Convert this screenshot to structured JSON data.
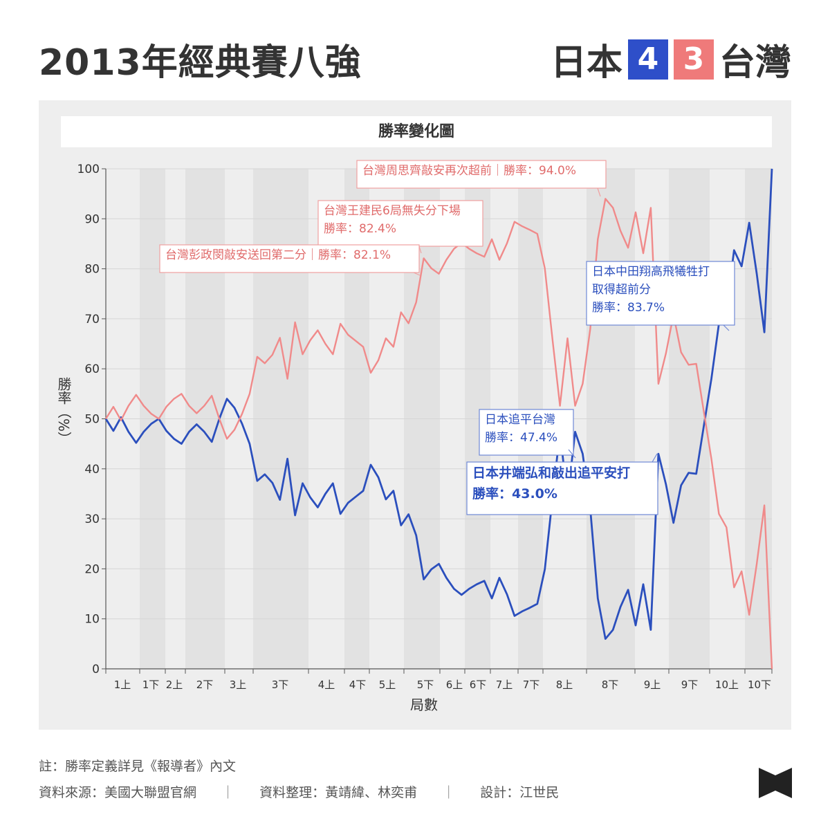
{
  "header": {
    "title": "2013年經典賽八強",
    "team_left": "日本",
    "score_left": "4",
    "score_right": "3",
    "team_right": "台灣"
  },
  "colors": {
    "japan": "#2b4fbd",
    "taiwan": "#f08a8a",
    "japan_box": "#2e4fc9",
    "taiwan_box": "#ef7a7a",
    "band": "#e2e2e2"
  },
  "chart_data": {
    "type": "line",
    "title": "勝率變化圖",
    "xlabel": "局數",
    "ylabel": "勝率（%）",
    "ylim": [
      0,
      100
    ],
    "yticks": [
      0,
      10,
      20,
      30,
      40,
      50,
      60,
      70,
      80,
      90,
      100
    ],
    "x_tick_labels": [
      "1上",
      "1下",
      "2上",
      "2下",
      "3上",
      "3下",
      "4上",
      "4下",
      "5上",
      "5下",
      "6上",
      "6下",
      "7上",
      "7下",
      "8上",
      "8下",
      "9上",
      "9下",
      "10上",
      "10下"
    ],
    "series": [
      {
        "name": "日本",
        "color": "#2b4fbd",
        "values": [
          50.0,
          47.6,
          50.3,
          47.4,
          45.2,
          47.4,
          49.0,
          50.0,
          47.6,
          46.0,
          45.0,
          47.4,
          48.9,
          47.4,
          45.4,
          50.0,
          54.0,
          52.2,
          49.0,
          45.0,
          37.6,
          38.9,
          37.2,
          33.8,
          42.0,
          30.7,
          37.1,
          34.3,
          32.3,
          35.0,
          37.1,
          31.0,
          33.2,
          34.4,
          35.6,
          40.8,
          38.3,
          33.9,
          35.6,
          28.7,
          30.9,
          26.7,
          17.9,
          19.9,
          21.0,
          18.2,
          16.0,
          14.8,
          16.0,
          16.9,
          17.6,
          14.1,
          18.2,
          14.9,
          10.6,
          11.5,
          12.2,
          13.0,
          19.9,
          33.9,
          47.4,
          33.9,
          47.4,
          43.0,
          32.0,
          14.1,
          6.0,
          7.8,
          12.4,
          15.8,
          8.7,
          16.9,
          7.8,
          43.0,
          36.9,
          29.2,
          36.7,
          39.2,
          39.0,
          48.5,
          58.0,
          69.0,
          71.7,
          83.7,
          80.5,
          89.2,
          79.0,
          67.3,
          100.0
        ]
      },
      {
        "name": "台灣",
        "color": "#f08a8a",
        "values": [
          50.0,
          52.4,
          49.7,
          52.6,
          54.8,
          52.6,
          51.0,
          50.0,
          52.4,
          54.0,
          55.0,
          52.6,
          51.1,
          52.6,
          54.6,
          50.0,
          46.0,
          47.8,
          51.0,
          55.0,
          62.4,
          61.1,
          62.8,
          66.2,
          58.0,
          69.3,
          62.9,
          65.7,
          67.7,
          65.0,
          62.9,
          69.0,
          66.8,
          65.6,
          64.4,
          59.2,
          61.7,
          66.1,
          64.4,
          71.3,
          69.1,
          73.3,
          82.1,
          80.1,
          79.0,
          81.8,
          84.0,
          85.2,
          84.0,
          83.1,
          82.4,
          85.9,
          81.8,
          85.1,
          89.4,
          88.5,
          87.8,
          87.0,
          80.1,
          66.1,
          52.6,
          66.1,
          52.6,
          57.0,
          68.0,
          85.9,
          94.0,
          92.2,
          87.6,
          84.2,
          91.3,
          83.1,
          92.2,
          57.0,
          63.1,
          70.8,
          63.3,
          60.8,
          61.0,
          51.5,
          42.0,
          31.0,
          28.3,
          16.3,
          19.5,
          10.8,
          21.0,
          32.7,
          0.0
        ]
      }
    ],
    "annotations": [
      {
        "team": "台灣",
        "lines": [
          "台灣周思齊敲安再次超前｜勝率：94.0%"
        ],
        "value": 94.0
      },
      {
        "team": "台灣",
        "lines": [
          "台灣王建民6局無失分下場",
          "勝率：82.4%"
        ],
        "value": 82.4
      },
      {
        "team": "台灣",
        "lines": [
          "台灣彭政閔敲安送回第二分｜勝率：82.1%"
        ],
        "value": 82.1
      },
      {
        "team": "日本",
        "lines": [
          "日本中田翔高飛犧牲打",
          "取得超前分",
          "勝率：83.7%"
        ],
        "value": 83.7
      },
      {
        "team": "日本",
        "lines": [
          "日本追平台灣",
          "勝率：47.4%"
        ],
        "value": 47.4
      },
      {
        "team": "日本",
        "lines": [
          "日本井端弘和敲出追平安打",
          "勝率：43.0%"
        ],
        "value": 43.0,
        "bold": true
      }
    ]
  },
  "footer": {
    "note": "註：勝率定義詳見《報導者》內文",
    "source": "資料來源：美國大聯盟官網",
    "separator": "｜",
    "compiled": "資料整理：黃靖緯、林奕甫",
    "design": "設計：江世民"
  }
}
